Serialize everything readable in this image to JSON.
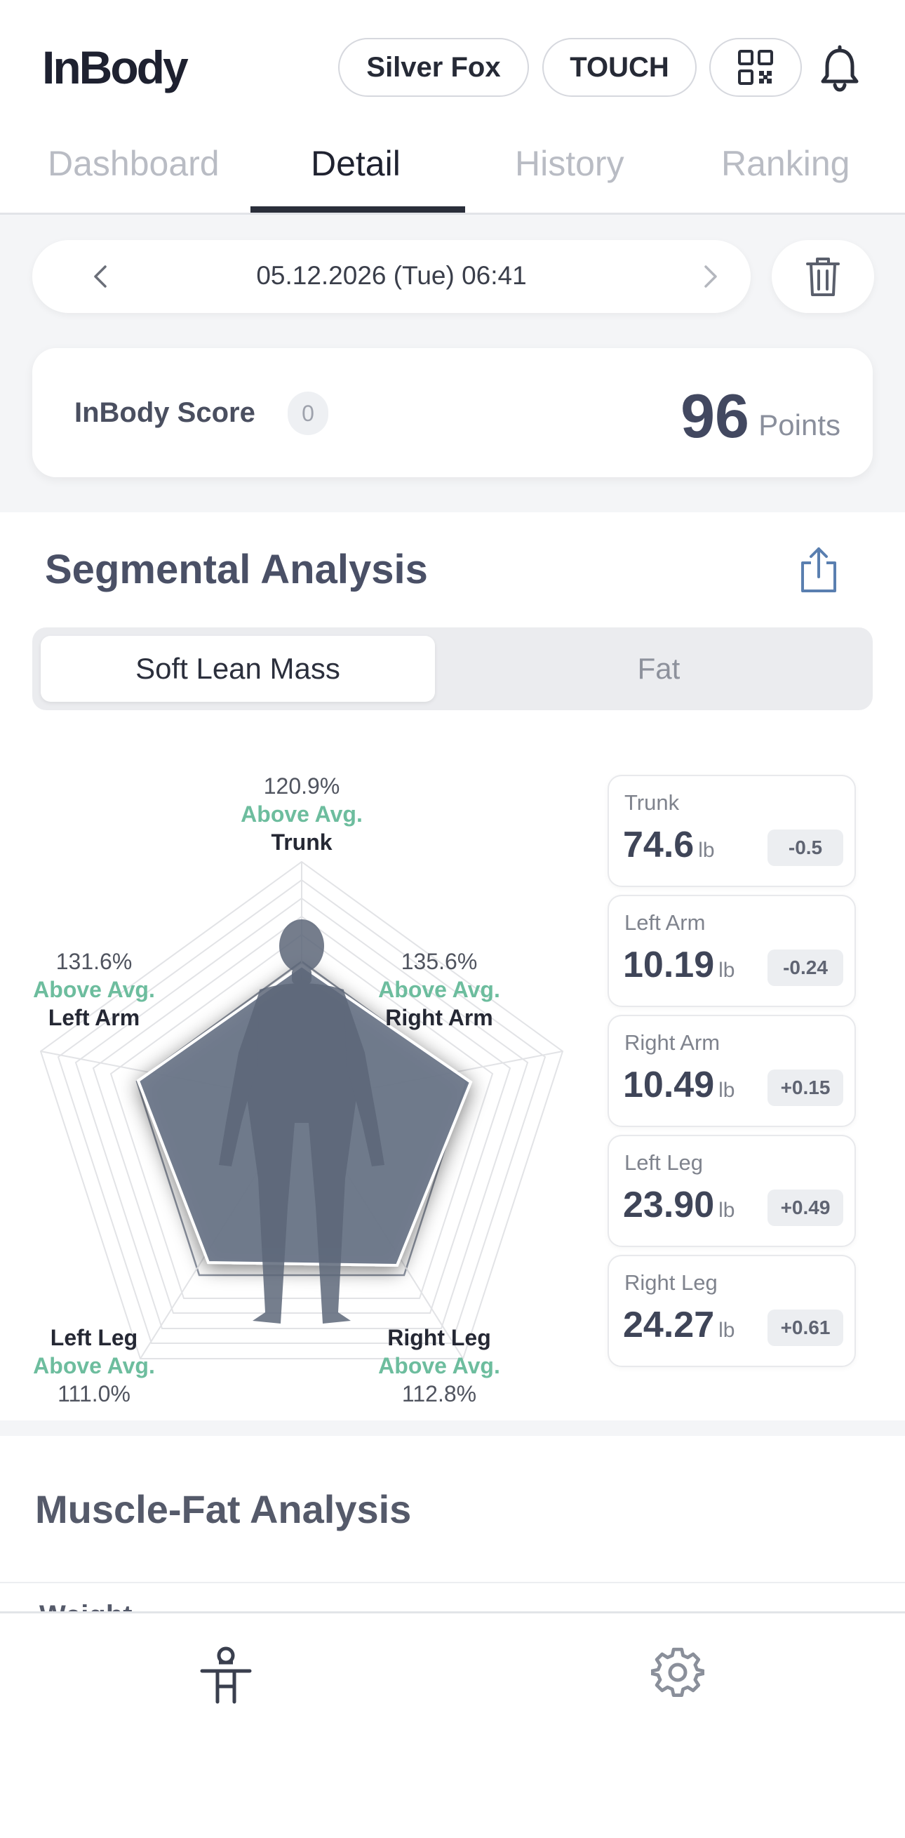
{
  "header": {
    "logo": "InBody",
    "user_label": "Silver Fox",
    "device_label": "TOUCH",
    "qr_icon": "qr-code-icon",
    "bell_icon": "bell-icon"
  },
  "tabs": [
    {
      "label": "Dashboard",
      "active": false
    },
    {
      "label": "Detail",
      "active": true
    },
    {
      "label": "History",
      "active": false
    },
    {
      "label": "Ranking",
      "active": false
    }
  ],
  "date_nav": {
    "date_text": "05.12.2026 (Tue) 06:41",
    "prev_icon": "chevron-left-icon",
    "next_icon": "chevron-right-icon",
    "delete_icon": "trash-icon"
  },
  "score": {
    "label": "InBody Score",
    "badge": "0",
    "value": "96",
    "unit": "Points"
  },
  "segmental": {
    "title": "Segmental Analysis",
    "share_icon": "share-icon",
    "toggle": {
      "active": "Soft Lean Mass",
      "inactive": "Fat"
    },
    "radar": {
      "trunk": {
        "percent": "120.9%",
        "status": "Above Avg.",
        "name": "Trunk"
      },
      "left_arm": {
        "percent": "131.6%",
        "status": "Above Avg.",
        "name": "Left Arm"
      },
      "right_arm": {
        "percent": "135.6%",
        "status": "Above Avg.",
        "name": "Right Arm"
      },
      "left_leg": {
        "percent": "111.0%",
        "status": "Above Avg.",
        "name": "Left Leg"
      },
      "right_leg": {
        "percent": "112.8%",
        "status": "Above Avg.",
        "name": "Right Leg"
      }
    },
    "cards": [
      {
        "name": "Trunk",
        "value": "74.6",
        "unit": "lb",
        "diff": "-0.5"
      },
      {
        "name": "Left Arm",
        "value": "10.19",
        "unit": "lb",
        "diff": "-0.24"
      },
      {
        "name": "Right Arm",
        "value": "10.49",
        "unit": "lb",
        "diff": "+0.15"
      },
      {
        "name": "Left Leg",
        "value": "23.90",
        "unit": "lb",
        "diff": "+0.49"
      },
      {
        "name": "Right Leg",
        "value": "24.27",
        "unit": "lb",
        "diff": "+0.61"
      }
    ]
  },
  "muscle_fat": {
    "title": "Muscle-Fat Analysis",
    "clipped_label": "Weight"
  },
  "bottom_nav": {
    "items": [
      {
        "icon": "body-icon",
        "active": true
      },
      {
        "icon": "gear-icon",
        "active": false
      }
    ]
  },
  "colors": {
    "status_green": "#6dbd9e",
    "radar_fill": "#6b7689",
    "text_dark": "#2b3040"
  }
}
